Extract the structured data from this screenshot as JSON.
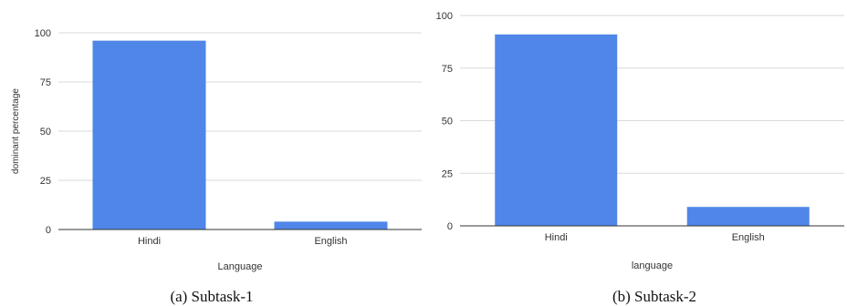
{
  "bar_color": "#4f86e8",
  "chart_data": [
    {
      "type": "bar",
      "categories": [
        "Hindi",
        "English"
      ],
      "values": [
        96,
        4
      ],
      "xlabel": "Language",
      "ylabel": "dominant percentage",
      "ylim": [
        0,
        100
      ],
      "yticks": [
        "0",
        "25",
        "50",
        "75",
        "100"
      ],
      "grid": true,
      "caption": "(a) Subtask-1"
    },
    {
      "type": "bar",
      "categories": [
        "Hindi",
        "English"
      ],
      "values": [
        91,
        9
      ],
      "xlabel": "language",
      "ylabel": "",
      "ylim": [
        0,
        100
      ],
      "yticks": [
        "0",
        "25",
        "50",
        "75",
        "100"
      ],
      "grid": true,
      "caption": "(b) Subtask-2"
    }
  ]
}
